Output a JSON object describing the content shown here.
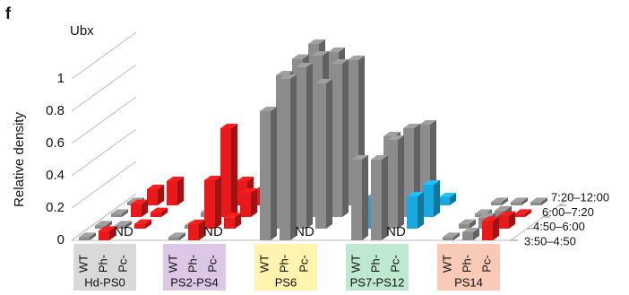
{
  "chart_data": {
    "type": "bar3d",
    "panel_label": "f",
    "title": "Ubx",
    "y_label": "Relative density",
    "ylim": [
      0,
      1.2
    ],
    "yticks": [
      0,
      0.2,
      0.4,
      0.6,
      0.8,
      1
    ],
    "groups": [
      {
        "name": "Hd-PS0",
        "color": "#d9d9d9",
        "subcategories": [
          "WT",
          "Ph-",
          "Pc-"
        ]
      },
      {
        "name": "PS2-PS4",
        "color": "#dcc8e6",
        "subcategories": [
          "WT",
          "Ph-",
          "Pc-"
        ]
      },
      {
        "name": "PS6",
        "color": "#fff3b0",
        "subcategories": [
          "WT",
          "Ph-",
          "Pc-"
        ]
      },
      {
        "name": "PS7-PS12",
        "color": "#bfe8d0",
        "subcategories": [
          "WT",
          "Ph-",
          "Pc-"
        ]
      },
      {
        "name": "PS14",
        "color": "#f9cab6",
        "subcategories": [
          "WT",
          "Ph-",
          "Pc-"
        ]
      }
    ],
    "series": [
      {
        "name": "3:50–4:50",
        "values": [
          0.02,
          0.06,
          null,
          0.02,
          0.1,
          null,
          0.8,
          1.0,
          null,
          0.5,
          0.5,
          null,
          0.02,
          0.05,
          0.12
        ],
        "value_labels": [
          null,
          null,
          "ND",
          null,
          null,
          "ND",
          null,
          null,
          "ND",
          null,
          null,
          "ND",
          null,
          null,
          null
        ],
        "colors": [
          "#8c8c8c",
          "#e8191a",
          "#8c8c8c",
          "#8c8c8c",
          "#e8191a",
          "#8c8c8c",
          "#8c8c8c",
          "#8c8c8c",
          "#8c8c8c",
          "#8c8c8c",
          "#8c8c8c",
          "#8c8c8c",
          "#8c8c8c",
          "#8c8c8c",
          "#e8191a"
        ]
      },
      {
        "name": "4:50–6:00",
        "values": [
          0.02,
          0.02,
          0.03,
          0.02,
          0.3,
          0.07,
          0.95,
          1.0,
          0.9,
          0.2,
          0.55,
          0.2,
          0.03,
          0.07,
          0.08
        ],
        "colors": [
          "#8c8c8c",
          "#8c8c8c",
          "#e8191a",
          "#8c8c8c",
          "#e8191a",
          "#e8191a",
          "#8c8c8c",
          "#8c8c8c",
          "#8c8c8c",
          "#1aa8e0",
          "#8c8c8c",
          "#1aa8e0",
          "#8c8c8c",
          "#8c8c8c",
          "#e8191a"
        ]
      },
      {
        "name": "6:00–7:20",
        "values": [
          0.02,
          0.08,
          0.03,
          0.03,
          0.55,
          0.15,
          0.98,
          1.0,
          0.95,
          0.5,
          0.55,
          0.2,
          0.02,
          0.04,
          0.02
        ],
        "colors": [
          "#8c8c8c",
          "#e8191a",
          "#e8191a",
          "#8c8c8c",
          "#e8191a",
          "#e8191a",
          "#8c8c8c",
          "#8c8c8c",
          "#8c8c8c",
          "#8c8c8c",
          "#8c8c8c",
          "#1aa8e0",
          "#8c8c8c",
          "#8c8c8c",
          "#e8191a"
        ]
      },
      {
        "name": "7:20–12:00",
        "values": [
          0.02,
          0.1,
          0.15,
          0.02,
          0.15,
          0.1,
          1.0,
          0.95,
          0.9,
          0.02,
          0.5,
          0.05,
          0.02,
          0.02,
          0.02
        ],
        "colors": [
          "#8c8c8c",
          "#e8191a",
          "#e8191a",
          "#8c8c8c",
          "#e8191a",
          "#e8191a",
          "#8c8c8c",
          "#8c8c8c",
          "#8c8c8c",
          "#8c8c8c",
          "#8c8c8c",
          "#1aa8e0",
          "#8c8c8c",
          "#8c8c8c",
          "#8c8c8c"
        ]
      }
    ]
  }
}
